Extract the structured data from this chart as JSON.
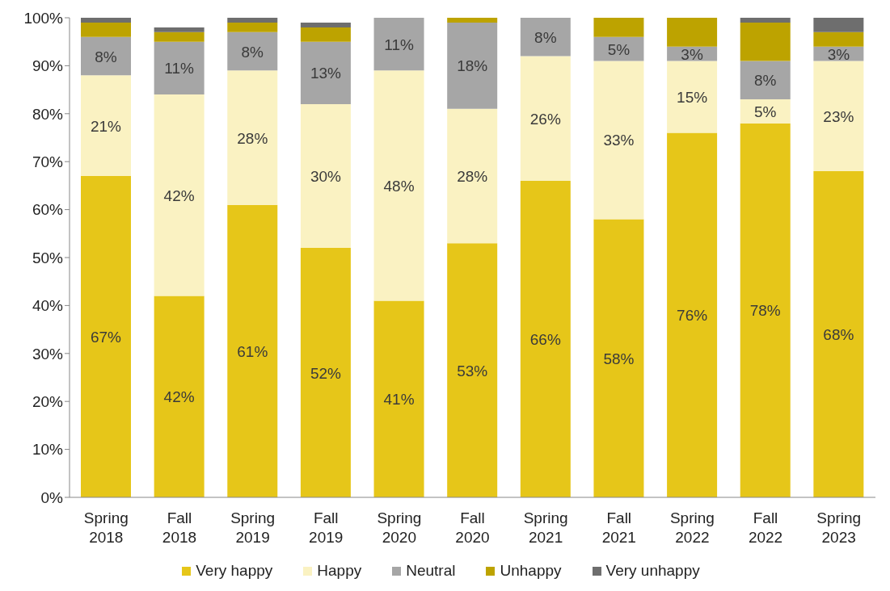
{
  "chart_data": {
    "type": "bar",
    "stacked": true,
    "categories": [
      "Spring 2018",
      "Fall 2018",
      "Spring 2019",
      "Fall 2019",
      "Spring 2020",
      "Fall 2020",
      "Spring 2021",
      "Fall 2021",
      "Spring 2022",
      "Fall 2022",
      "Spring 2023"
    ],
    "series": [
      {
        "name": "Very happy",
        "color": "#e6c619",
        "values": [
          67,
          42,
          61,
          52,
          41,
          53,
          66,
          58,
          76,
          78,
          68
        ],
        "value_labels": [
          "67%",
          "42%",
          "61%",
          "52%",
          "41%",
          "53%",
          "66%",
          "58%",
          "76%",
          "78%",
          "68%"
        ]
      },
      {
        "name": "Happy",
        "color": "#faf2c2",
        "values": [
          21,
          42,
          28,
          30,
          48,
          28,
          26,
          33,
          15,
          5,
          23
        ],
        "value_labels": [
          "21%",
          "42%",
          "28%",
          "30%",
          "48%",
          "28%",
          "26%",
          "33%",
          "15%",
          "5%",
          "23%"
        ]
      },
      {
        "name": "Neutral",
        "color": "#a6a6a6",
        "values": [
          8,
          11,
          8,
          13,
          11,
          18,
          8,
          5,
          3,
          8,
          3
        ],
        "value_labels": [
          "8%",
          "11%",
          "8%",
          "13%",
          "11%",
          "18%",
          "8%",
          "5%",
          "3%",
          "8%",
          "3%"
        ]
      },
      {
        "name": "Unhappy",
        "color": "#bda300",
        "values": [
          3,
          2,
          2,
          3,
          0,
          1,
          0,
          4,
          6,
          8,
          3
        ]
      },
      {
        "name": "Very unhappy",
        "color": "#6e6e6e",
        "values": [
          1,
          1,
          1,
          1,
          0,
          0,
          0,
          0,
          0,
          1,
          3
        ]
      }
    ],
    "ylim": [
      0,
      100
    ],
    "yticks": [
      {
        "value": 0,
        "label": "0%"
      },
      {
        "value": 10,
        "label": "10%"
      },
      {
        "value": 20,
        "label": "20%"
      },
      {
        "value": 30,
        "label": "30%"
      },
      {
        "value": 40,
        "label": "40%"
      },
      {
        "value": 50,
        "label": "50%"
      },
      {
        "value": 60,
        "label": "60%"
      },
      {
        "value": 70,
        "label": "70%"
      },
      {
        "value": 80,
        "label": "80%"
      },
      {
        "value": 90,
        "label": "90%"
      },
      {
        "value": 100,
        "label": "100%"
      }
    ],
    "grid": false,
    "legend": "bottom"
  }
}
